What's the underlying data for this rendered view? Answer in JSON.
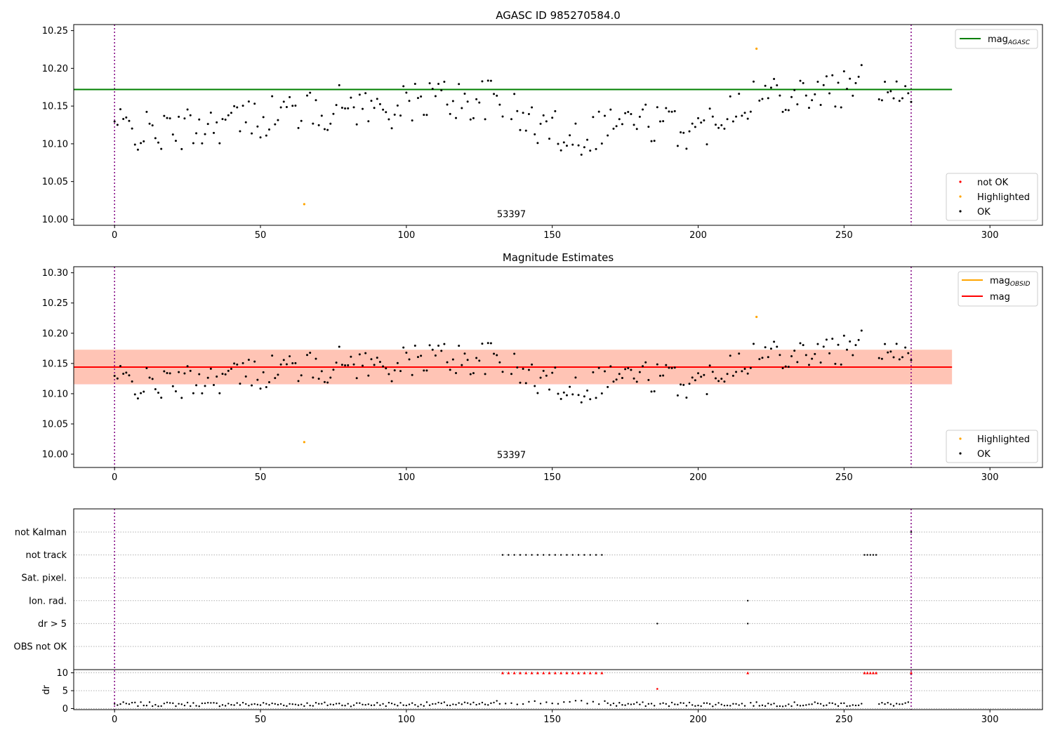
{
  "chart_data": [
    {
      "type": "scatter",
      "title": "AGASC ID 985270584.0",
      "xlim": [
        -14,
        318
      ],
      "ylim": [
        9.992,
        10.258
      ],
      "xticks": [
        0,
        50,
        100,
        150,
        200,
        250,
        300
      ],
      "yticks": [
        10.0,
        10.05,
        10.1,
        10.15,
        10.2,
        10.25
      ],
      "ytick_labels": [
        "10.00",
        "10.05",
        "10.10",
        "10.15",
        "10.20",
        "10.25"
      ],
      "obsid_boundaries": [
        0,
        273
      ],
      "obsid_label": {
        "text": "53397",
        "x": 136,
        "y": 9.998
      },
      "mag_agasc": {
        "label_main": "mag",
        "label_sub": "AGASC",
        "value": 10.172,
        "x_range": [
          -14,
          287
        ],
        "color": "#008000"
      },
      "series": [
        {
          "name": "not OK",
          "color": "#ff0000",
          "x": [],
          "y": []
        },
        {
          "name": "Highlighted",
          "color": "#ffa500",
          "x": [
            65,
            220
          ],
          "y": [
            10.02,
            10.226
          ]
        },
        {
          "name": "OK",
          "color": "#000000"
        }
      ],
      "legend_upper": "top-right",
      "legend_lower": "bottom-right",
      "grid": false
    },
    {
      "type": "scatter",
      "title": "Magnitude Estimates",
      "xlim": [
        -14,
        318
      ],
      "ylim": [
        9.978,
        10.31
      ],
      "xticks": [
        0,
        50,
        100,
        150,
        200,
        250,
        300
      ],
      "yticks": [
        10.0,
        10.05,
        10.1,
        10.15,
        10.2,
        10.25,
        10.3
      ],
      "ytick_labels": [
        "10.00",
        "10.05",
        "10.10",
        "10.15",
        "10.20",
        "10.25",
        "10.30"
      ],
      "obsid_boundaries": [
        0,
        273
      ],
      "obsid_label": {
        "text": "53397",
        "x": 136,
        "y": 9.988
      },
      "mag_obsid": {
        "label_main": "mag",
        "label_sub": "OBSID",
        "value": 10.144,
        "x_range": [
          -14,
          287
        ],
        "band": [
          10.116,
          10.173
        ],
        "color": "#ffa500"
      },
      "mag": {
        "label": "mag",
        "value": 10.144,
        "x_range": [
          -14,
          287
        ],
        "band": [
          10.115,
          10.172
        ],
        "color": "#ff0000"
      },
      "series": [
        {
          "name": "Highlighted",
          "color": "#ffa500",
          "x": [
            65,
            220
          ],
          "y": [
            10.02,
            10.227
          ]
        },
        {
          "name": "OK",
          "color": "#000000"
        }
      ],
      "legend_upper": "top-right",
      "legend_lower": "bottom-right",
      "grid": false
    },
    {
      "type": "scatter",
      "title": "",
      "xlim": [
        -14,
        318
      ],
      "xticks": [
        0,
        50,
        100,
        150,
        200,
        250,
        300
      ],
      "flag_categories": [
        "not Kalman",
        "not track",
        "Sat. pixel.",
        "Ion. rad.",
        "dr > 5",
        "OBS not OK"
      ],
      "flags": {
        "not Kalman": [
          273
        ],
        "not track": [
          133,
          135,
          137,
          139,
          141,
          143,
          145,
          147,
          149,
          151,
          153,
          155,
          157,
          159,
          161,
          163,
          165,
          167,
          257,
          258,
          259,
          260,
          261
        ],
        "Sat. pixel.": [],
        "Ion. rad.": [
          217
        ],
        "dr > 5": [
          186,
          217
        ],
        "OBS not OK": []
      },
      "dr": {
        "ylabel": "dr",
        "yticks": [
          0,
          5,
          10
        ],
        "ylim": [
          -0.3,
          10.5
        ],
        "clip_value": 10,
        "high_points": {
          "x": [
            133,
            135,
            137,
            139,
            141,
            143,
            145,
            147,
            149,
            151,
            153,
            155,
            157,
            159,
            161,
            163,
            165,
            167,
            186,
            217,
            257,
            258,
            259,
            260,
            261,
            273
          ],
          "y": [
            10,
            10,
            10,
            10,
            10,
            10,
            10,
            10,
            10,
            10,
            10,
            10,
            10,
            10,
            10,
            10,
            10,
            10,
            5.5,
            10,
            10,
            10,
            10,
            10,
            10,
            10
          ]
        }
      },
      "obsid_boundaries": [
        0,
        273
      ],
      "grid": "horizontal dotted"
    }
  ]
}
